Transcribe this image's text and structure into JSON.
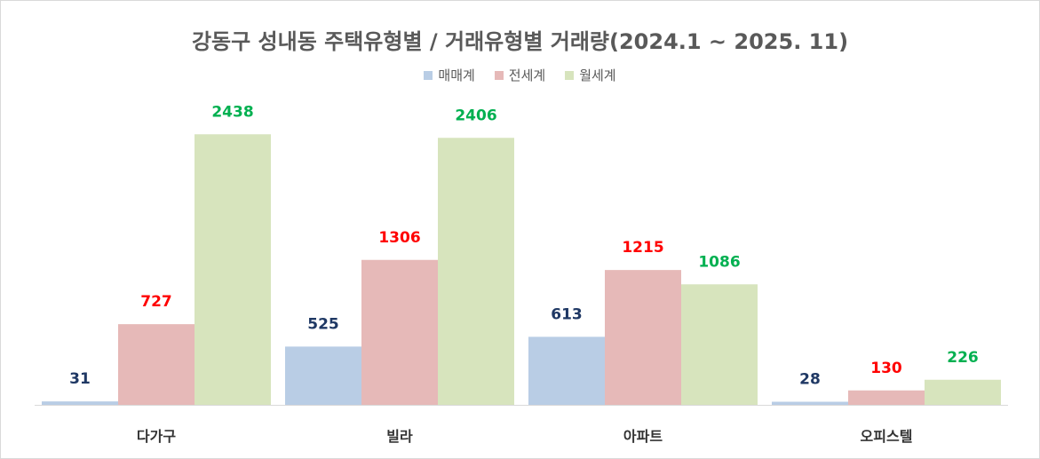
{
  "chart_data": {
    "type": "bar",
    "title": "강동구 성내동 주택유형별 / 거래유형별 거래량(2024.1 ~ 2025. 11)",
    "categories": [
      "다가구",
      "빌라",
      "아파트",
      "오피스텔"
    ],
    "series": [
      {
        "name": "매매계",
        "values": [
          31,
          525,
          613,
          28
        ],
        "color": "#b9cde5",
        "label_color": "#1f3864"
      },
      {
        "name": "전세계",
        "values": [
          727,
          1306,
          1215,
          130
        ],
        "color": "#e6b9b8",
        "label_color": "#ff0000"
      },
      {
        "name": "월세계",
        "values": [
          2438,
          2406,
          1086,
          226
        ],
        "color": "#d7e4bd",
        "label_color": "#00b050"
      }
    ],
    "ylim": [
      0,
      2800
    ],
    "grid": false,
    "legend_position": "top",
    "xlabel": "",
    "ylabel": ""
  }
}
